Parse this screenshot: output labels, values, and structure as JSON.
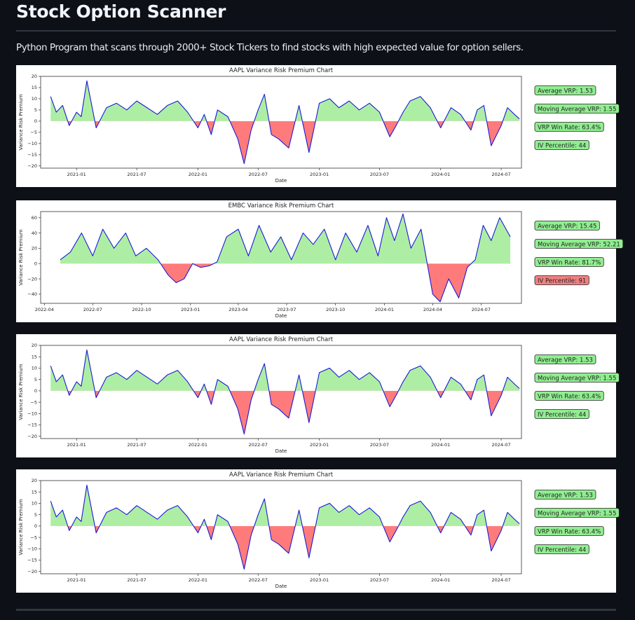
{
  "page": {
    "title": "Stock Option Scanner",
    "description": "Python Program that scans through 2000+ Stock Tickers to find stocks with high expected value for option sellers."
  },
  "colors": {
    "positive_fill": "#aeeea4",
    "negative_fill": "#ff7b7b",
    "line": "#1a1ad8",
    "badge_green": "#90ee90",
    "badge_red": "#f08080"
  },
  "chart_data": [
    {
      "type": "area",
      "title": "AAPL Variance Risk Premium Chart",
      "xlabel": "Date",
      "ylabel": "Variance Risk Premium",
      "x_range": [
        "2020-09-15",
        "2024-08-31"
      ],
      "ylim": [
        -21,
        20
      ],
      "xticks": [
        "2021-01",
        "2021-07",
        "2022-01",
        "2022-07",
        "2023-01",
        "2023-07",
        "2024-01",
        "2024-07"
      ],
      "yticks": [
        20,
        15,
        10,
        5,
        0,
        -5,
        -10,
        -15,
        -20
      ],
      "grid": false,
      "series": [
        {
          "x": [
            "2020-10-15",
            "2020-11-01",
            "2020-11-20",
            "2020-12-10",
            "2021-01-01",
            "2021-01-15",
            "2021-02-01",
            "2021-03-01",
            "2021-04-01",
            "2021-05-01",
            "2021-06-01",
            "2021-07-01",
            "2021-08-01",
            "2021-09-01",
            "2021-10-01",
            "2021-11-01",
            "2021-12-01",
            "2022-01-01",
            "2022-01-20",
            "2022-02-10",
            "2022-03-01",
            "2022-04-01",
            "2022-05-01",
            "2022-05-20",
            "2022-06-10",
            "2022-07-01",
            "2022-07-20",
            "2022-08-10",
            "2022-09-01",
            "2022-10-01",
            "2022-11-01",
            "2022-12-01",
            "2023-01-01",
            "2023-02-01",
            "2023-03-01",
            "2023-04-01",
            "2023-05-01",
            "2023-06-01",
            "2023-07-01",
            "2023-08-01",
            "2023-08-20",
            "2023-09-10",
            "2023-10-01",
            "2023-11-01",
            "2023-12-01",
            "2024-01-01",
            "2024-02-01",
            "2024-03-01",
            "2024-04-01",
            "2024-04-20",
            "2024-05-10",
            "2024-06-01",
            "2024-07-01",
            "2024-07-20",
            "2024-08-10",
            "2024-08-25"
          ],
          "values": [
            11,
            4,
            7,
            -2,
            4,
            2,
            18,
            -3,
            6,
            8,
            5,
            9,
            6,
            3,
            7,
            9,
            4,
            -3,
            3,
            -6,
            5,
            2,
            -8,
            -19,
            -4,
            5,
            12,
            -6,
            -8,
            -12,
            7,
            -14,
            8,
            10,
            6,
            9,
            5,
            8,
            4,
            -7,
            -2,
            4,
            9,
            11,
            6,
            -3,
            6,
            3,
            -4,
            5,
            7,
            -11,
            -2,
            6,
            3,
            1
          ]
        }
      ],
      "annotations": [
        {
          "name": "average-vrp",
          "label": "Average VRP: 1.53",
          "color": "green"
        },
        {
          "name": "moving-average-vrp",
          "label": "Moving Average VRP: 1.55",
          "color": "green"
        },
        {
          "name": "vrp-win-rate",
          "label": "VRP Win Rate: 63.4%",
          "color": "green"
        },
        {
          "name": "iv-percentile",
          "label": "IV Percentile: 44",
          "color": "green"
        }
      ]
    },
    {
      "type": "area",
      "title": "EMBC Variance Risk Premium Chart",
      "xlabel": "Date",
      "ylabel": "Variance Risk Premium",
      "x_range": [
        "2022-03-25",
        "2024-09-15"
      ],
      "ylim": [
        -52,
        68
      ],
      "xticks": [
        "2022-04",
        "2022-07",
        "2022-10",
        "2023-01",
        "2023-04",
        "2023-07",
        "2023-10",
        "2024-01",
        "2024-04",
        "2024-07"
      ],
      "yticks": [
        60,
        40,
        20,
        0,
        -20,
        -40
      ],
      "grid": false,
      "series": [
        {
          "x": [
            "2022-05-01",
            "2022-05-20",
            "2022-06-10",
            "2022-07-01",
            "2022-07-20",
            "2022-08-10",
            "2022-09-01",
            "2022-09-20",
            "2022-10-10",
            "2022-11-01",
            "2022-11-20",
            "2022-12-05",
            "2022-12-20",
            "2023-01-05",
            "2023-01-20",
            "2023-02-05",
            "2023-02-20",
            "2023-03-10",
            "2023-04-01",
            "2023-04-20",
            "2023-05-10",
            "2023-06-01",
            "2023-06-20",
            "2023-07-10",
            "2023-08-01",
            "2023-08-20",
            "2023-09-10",
            "2023-10-01",
            "2023-10-20",
            "2023-11-10",
            "2023-12-01",
            "2023-12-20",
            "2024-01-05",
            "2024-01-20",
            "2024-02-05",
            "2024-02-20",
            "2024-03-10",
            "2024-04-01",
            "2024-04-15",
            "2024-05-01",
            "2024-05-20",
            "2024-06-05",
            "2024-06-20",
            "2024-07-05",
            "2024-07-20",
            "2024-08-05",
            "2024-08-25"
          ],
          "values": [
            5,
            15,
            40,
            10,
            45,
            20,
            40,
            10,
            20,
            5,
            -15,
            -25,
            -20,
            0,
            -5,
            -3,
            2,
            35,
            45,
            10,
            50,
            15,
            35,
            5,
            40,
            25,
            45,
            5,
            40,
            15,
            50,
            10,
            60,
            30,
            65,
            20,
            45,
            -40,
            -50,
            -20,
            -45,
            -5,
            5,
            50,
            30,
            60,
            35
          ]
        }
      ],
      "annotations": [
        {
          "name": "average-vrp",
          "label": "Average VRP: 15.45",
          "color": "green"
        },
        {
          "name": "moving-average-vrp",
          "label": "Moving Average VRP: 52.21",
          "color": "green"
        },
        {
          "name": "vrp-win-rate",
          "label": "VRP Win Rate: 81.7%",
          "color": "green"
        },
        {
          "name": "iv-percentile",
          "label": "IV Percentile: 91",
          "color": "red"
        }
      ]
    },
    {
      "type": "area",
      "title": "AAPL Variance Risk Premium Chart",
      "xlabel": "Date",
      "ylabel": "Variance Risk Premium",
      "x_range": [
        "2020-09-15",
        "2024-08-31"
      ],
      "ylim": [
        -21,
        20
      ],
      "xticks": [
        "2021-01",
        "2021-07",
        "2022-01",
        "2022-07",
        "2023-01",
        "2023-07",
        "2024-01",
        "2024-07"
      ],
      "yticks": [
        20,
        15,
        10,
        5,
        0,
        -5,
        -10,
        -15,
        -20
      ],
      "grid": false,
      "series": [
        {
          "x": [
            "2020-10-15",
            "2020-11-01",
            "2020-11-20",
            "2020-12-10",
            "2021-01-01",
            "2021-01-15",
            "2021-02-01",
            "2021-03-01",
            "2021-04-01",
            "2021-05-01",
            "2021-06-01",
            "2021-07-01",
            "2021-08-01",
            "2021-09-01",
            "2021-10-01",
            "2021-11-01",
            "2021-12-01",
            "2022-01-01",
            "2022-01-20",
            "2022-02-10",
            "2022-03-01",
            "2022-04-01",
            "2022-05-01",
            "2022-05-20",
            "2022-06-10",
            "2022-07-01",
            "2022-07-20",
            "2022-08-10",
            "2022-09-01",
            "2022-10-01",
            "2022-11-01",
            "2022-12-01",
            "2023-01-01",
            "2023-02-01",
            "2023-03-01",
            "2023-04-01",
            "2023-05-01",
            "2023-06-01",
            "2023-07-01",
            "2023-08-01",
            "2023-08-20",
            "2023-09-10",
            "2023-10-01",
            "2023-11-01",
            "2023-12-01",
            "2024-01-01",
            "2024-02-01",
            "2024-03-01",
            "2024-04-01",
            "2024-04-20",
            "2024-05-10",
            "2024-06-01",
            "2024-07-01",
            "2024-07-20",
            "2024-08-10",
            "2024-08-25"
          ],
          "values": [
            11,
            4,
            7,
            -2,
            4,
            2,
            18,
            -3,
            6,
            8,
            5,
            9,
            6,
            3,
            7,
            9,
            4,
            -3,
            3,
            -6,
            5,
            2,
            -8,
            -19,
            -4,
            5,
            12,
            -6,
            -8,
            -12,
            7,
            -14,
            8,
            10,
            6,
            9,
            5,
            8,
            4,
            -7,
            -2,
            4,
            9,
            11,
            6,
            -3,
            6,
            3,
            -4,
            5,
            7,
            -11,
            -2,
            6,
            3,
            1
          ]
        }
      ],
      "annotations": [
        {
          "name": "average-vrp",
          "label": "Average VRP: 1.53",
          "color": "green"
        },
        {
          "name": "moving-average-vrp",
          "label": "Moving Average VRP: 1.55",
          "color": "green"
        },
        {
          "name": "vrp-win-rate",
          "label": "VRP Win Rate: 63.4%",
          "color": "green"
        },
        {
          "name": "iv-percentile",
          "label": "IV Percentile: 44",
          "color": "green"
        }
      ]
    },
    {
      "type": "area",
      "title": "AAPL Variance Risk Premium Chart",
      "xlabel": "Date",
      "ylabel": "Variance Risk Premium",
      "x_range": [
        "2020-09-15",
        "2024-08-31"
      ],
      "ylim": [
        -21,
        20
      ],
      "xticks": [
        "2021-01",
        "2021-07",
        "2022-01",
        "2022-07",
        "2023-01",
        "2023-07",
        "2024-01",
        "2024-07"
      ],
      "yticks": [
        20,
        15,
        10,
        5,
        0,
        -5,
        -10,
        -15,
        -20
      ],
      "grid": false,
      "series": [
        {
          "x": [
            "2020-10-15",
            "2020-11-01",
            "2020-11-20",
            "2020-12-10",
            "2021-01-01",
            "2021-01-15",
            "2021-02-01",
            "2021-03-01",
            "2021-04-01",
            "2021-05-01",
            "2021-06-01",
            "2021-07-01",
            "2021-08-01",
            "2021-09-01",
            "2021-10-01",
            "2021-11-01",
            "2021-12-01",
            "2022-01-01",
            "2022-01-20",
            "2022-02-10",
            "2022-03-01",
            "2022-04-01",
            "2022-05-01",
            "2022-05-20",
            "2022-06-10",
            "2022-07-01",
            "2022-07-20",
            "2022-08-10",
            "2022-09-01",
            "2022-10-01",
            "2022-11-01",
            "2022-12-01",
            "2023-01-01",
            "2023-02-01",
            "2023-03-01",
            "2023-04-01",
            "2023-05-01",
            "2023-06-01",
            "2023-07-01",
            "2023-08-01",
            "2023-08-20",
            "2023-09-10",
            "2023-10-01",
            "2023-11-01",
            "2023-12-01",
            "2024-01-01",
            "2024-02-01",
            "2024-03-01",
            "2024-04-01",
            "2024-04-20",
            "2024-05-10",
            "2024-06-01",
            "2024-07-01",
            "2024-07-20",
            "2024-08-10",
            "2024-08-25"
          ],
          "values": [
            11,
            4,
            7,
            -2,
            4,
            2,
            18,
            -3,
            6,
            8,
            5,
            9,
            6,
            3,
            7,
            9,
            4,
            -3,
            3,
            -6,
            5,
            2,
            -8,
            -19,
            -4,
            5,
            12,
            -6,
            -8,
            -12,
            7,
            -14,
            8,
            10,
            6,
            9,
            5,
            8,
            4,
            -7,
            -2,
            4,
            9,
            11,
            6,
            -3,
            6,
            3,
            -4,
            5,
            7,
            -11,
            -2,
            6,
            3,
            1
          ]
        }
      ],
      "annotations": [
        {
          "name": "average-vrp",
          "label": "Average VRP: 1.53",
          "color": "green"
        },
        {
          "name": "moving-average-vrp",
          "label": "Moving Average VRP: 1.55",
          "color": "green"
        },
        {
          "name": "vrp-win-rate",
          "label": "VRP Win Rate: 63.4%",
          "color": "green"
        },
        {
          "name": "iv-percentile",
          "label": "IV Percentile: 44",
          "color": "green"
        }
      ]
    }
  ]
}
